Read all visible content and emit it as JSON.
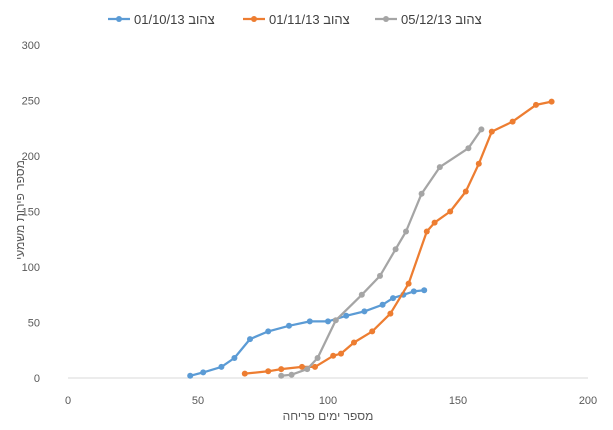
{
  "chart_data": {
    "type": "line",
    "title": "",
    "xlabel": "מספר ימים פריחה",
    "ylabel": "מספר פירות משמעי",
    "xlim": [
      0,
      200
    ],
    "ylim": [
      0,
      300
    ],
    "xticks": [
      0,
      50,
      100,
      150,
      200
    ],
    "yticks": [
      0,
      50,
      100,
      150,
      200,
      250,
      300
    ],
    "grid": false,
    "legend_position": "top",
    "series": [
      {
        "name": "צהוב 01/10/13",
        "color": "#5B9BD5",
        "points": [
          [
            47,
            2
          ],
          [
            52,
            5
          ],
          [
            59,
            10
          ],
          [
            64,
            18
          ],
          [
            70,
            35
          ],
          [
            77,
            42
          ],
          [
            85,
            47
          ],
          [
            93,
            51
          ],
          [
            100,
            51
          ],
          [
            107,
            56
          ],
          [
            114,
            60
          ],
          [
            121,
            66
          ],
          [
            125,
            72
          ],
          [
            129,
            75
          ],
          [
            133,
            78
          ],
          [
            137,
            79
          ]
        ]
      },
      {
        "name": "צהוב 01/11/13",
        "color": "#ED7D31",
        "points": [
          [
            68,
            4
          ],
          [
            77,
            6
          ],
          [
            82,
            8
          ],
          [
            90,
            10
          ],
          [
            95,
            10
          ],
          [
            102,
            20
          ],
          [
            105,
            22
          ],
          [
            110,
            32
          ],
          [
            117,
            42
          ],
          [
            124,
            58
          ],
          [
            131,
            85
          ],
          [
            138,
            132
          ],
          [
            141,
            140
          ],
          [
            147,
            150
          ],
          [
            153,
            168
          ],
          [
            158,
            193
          ],
          [
            163,
            222
          ],
          [
            171,
            231
          ],
          [
            180,
            246
          ],
          [
            186,
            249
          ]
        ]
      },
      {
        "name": "צהוב 05/12/13",
        "color": "#A5A5A5",
        "points": [
          [
            82,
            2
          ],
          [
            86,
            3
          ],
          [
            92,
            8
          ],
          [
            96,
            18
          ],
          [
            103,
            52
          ],
          [
            113,
            75
          ],
          [
            120,
            92
          ],
          [
            126,
            116
          ],
          [
            130,
            132
          ],
          [
            136,
            166
          ],
          [
            143,
            190
          ],
          [
            154,
            207
          ],
          [
            159,
            224
          ]
        ]
      }
    ]
  }
}
